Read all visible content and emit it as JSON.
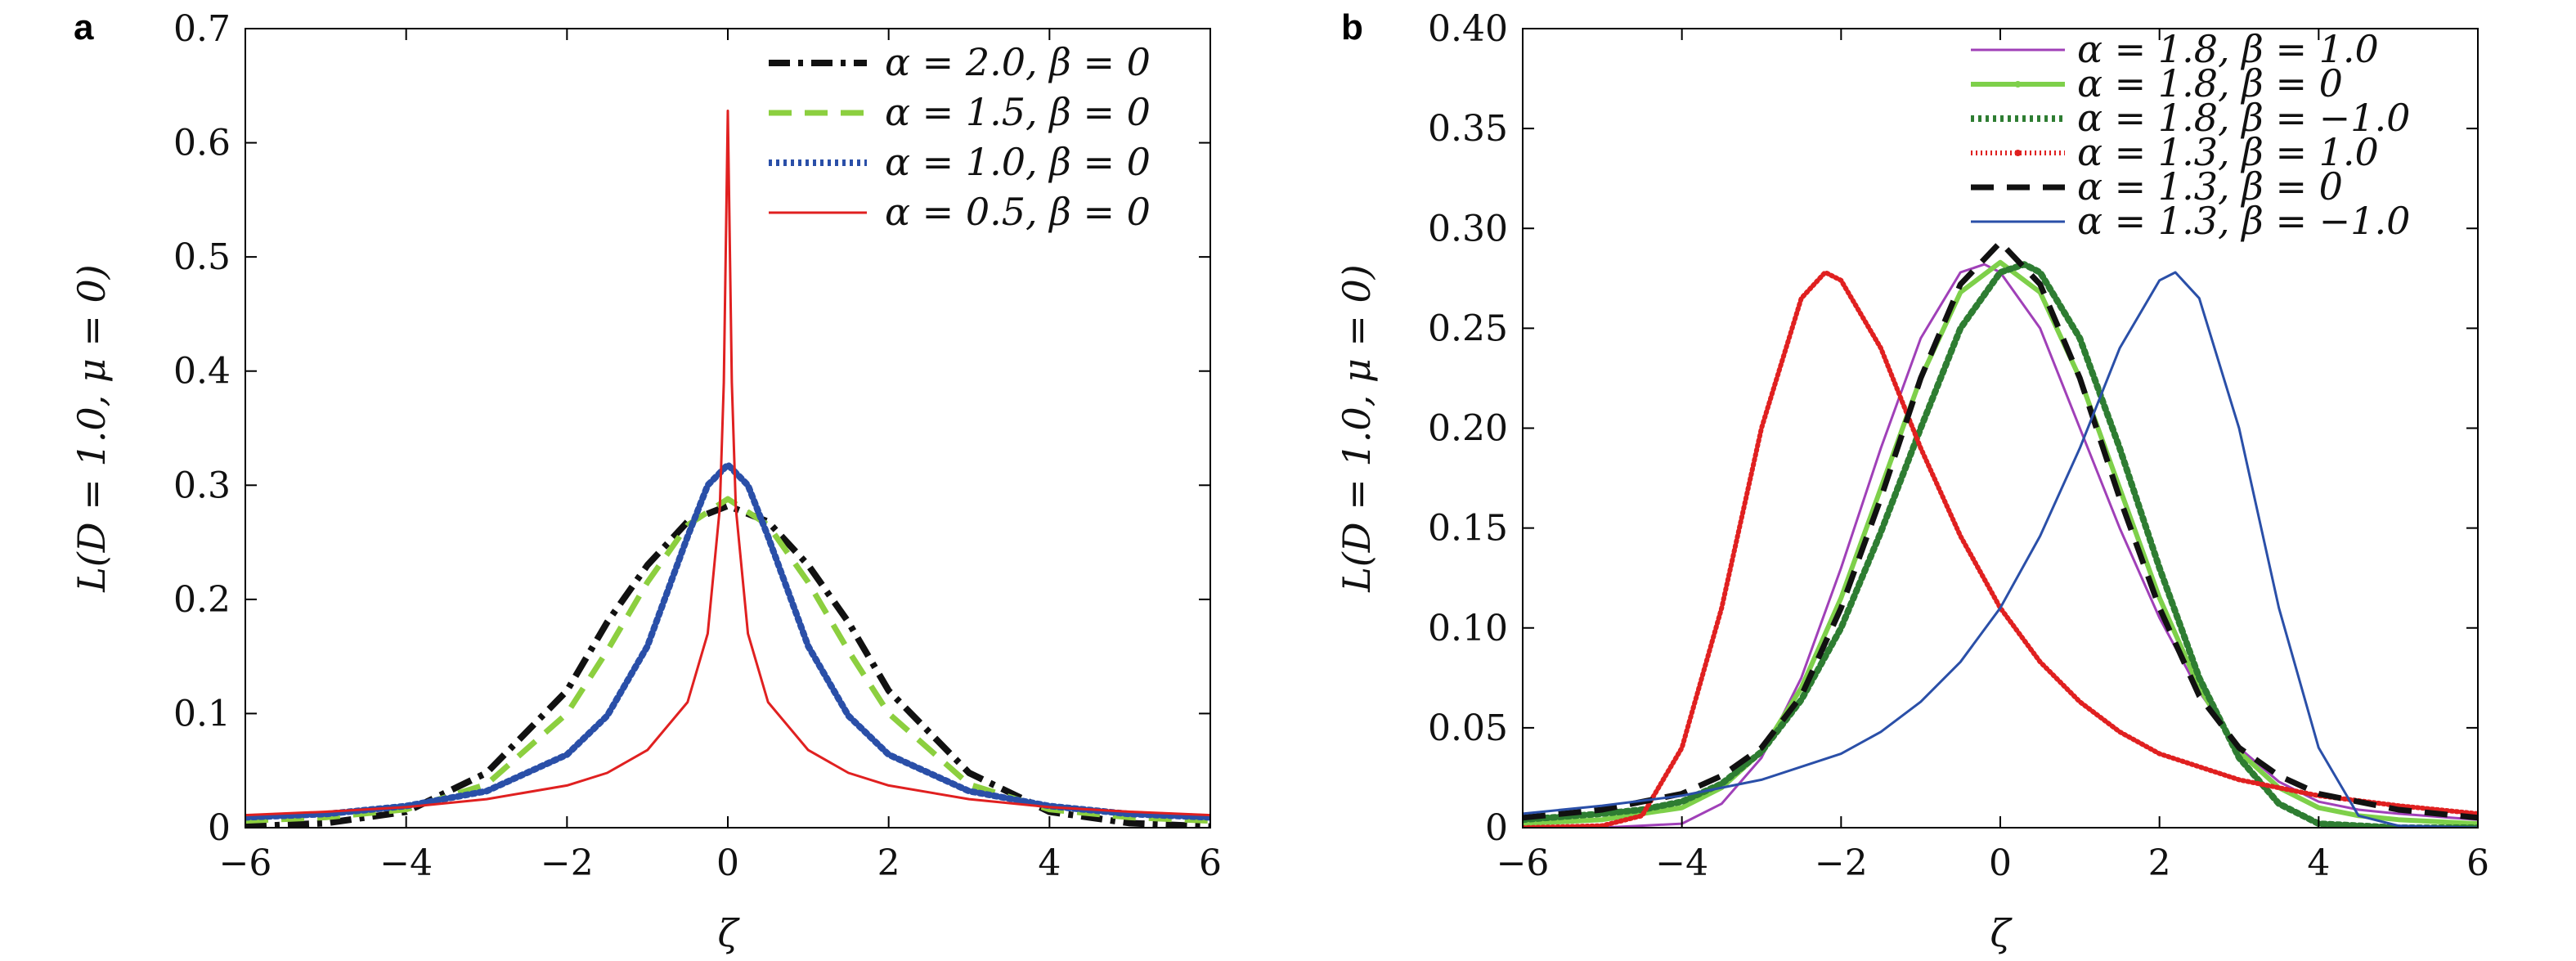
{
  "chart_data": [
    {
      "panel_label": "a",
      "type": "line",
      "xlabel": "ζ",
      "ylabel": "L(D = 1.0, μ = 0)",
      "xlim": [
        -6,
        6
      ],
      "ylim": [
        0,
        0.7
      ],
      "x_ticks": [
        -6,
        -4,
        -2,
        0,
        2,
        4,
        6
      ],
      "x_tick_labels": [
        "−6",
        "−4",
        "−2",
        "0",
        "2",
        "4",
        "6"
      ],
      "y_ticks": [
        0,
        0.1,
        0.2,
        0.3,
        0.4,
        0.5,
        0.6,
        0.7
      ],
      "y_tick_labels": [
        "0",
        "0.1",
        "0.2",
        "0.3",
        "0.4",
        "0.5",
        "0.6",
        "0.7"
      ],
      "legend_position": "top-right",
      "grid": false,
      "series": [
        {
          "name": "α = 2.0, β = 0",
          "color": "#111111",
          "style": "dashdot",
          "x": [
            -6,
            -5,
            -4,
            -3,
            -2,
            -1.5,
            -1,
            -0.5,
            0,
            0.5,
            1,
            1.5,
            2,
            3,
            4,
            5,
            6
          ],
          "y": [
            0.001,
            0.004,
            0.014,
            0.048,
            0.12,
            0.18,
            0.23,
            0.268,
            0.282,
            0.268,
            0.23,
            0.18,
            0.12,
            0.048,
            0.014,
            0.004,
            0.001
          ]
        },
        {
          "name": "α = 1.5, β = 0",
          "color": "#8ccf3f",
          "style": "dashed",
          "x": [
            -6,
            -5,
            -4,
            -3,
            -2,
            -1.5,
            -1,
            -0.5,
            0,
            0.5,
            1,
            1.5,
            2,
            3,
            4,
            5,
            6
          ],
          "y": [
            0.006,
            0.009,
            0.016,
            0.038,
            0.1,
            0.155,
            0.215,
            0.265,
            0.288,
            0.265,
            0.215,
            0.155,
            0.1,
            0.038,
            0.016,
            0.009,
            0.006
          ]
        },
        {
          "name": "α = 1.0, β = 0",
          "color": "#2a4fa8",
          "style": "dotted",
          "x": [
            -6,
            -5,
            -4,
            -3,
            -2,
            -1.5,
            -1,
            -0.5,
            -0.25,
            0,
            0.25,
            0.5,
            1,
            1.5,
            2,
            3,
            4,
            5,
            6
          ],
          "y": [
            0.009,
            0.012,
            0.019,
            0.032,
            0.064,
            0.098,
            0.159,
            0.255,
            0.3,
            0.318,
            0.3,
            0.255,
            0.159,
            0.098,
            0.064,
            0.032,
            0.019,
            0.012,
            0.009
          ]
        },
        {
          "name": "α = 0.5, β = 0",
          "color": "#e02020",
          "style": "solid",
          "x": [
            -6,
            -5,
            -4,
            -3,
            -2,
            -1.5,
            -1,
            -0.5,
            -0.25,
            -0.1,
            -0.05,
            0,
            0.05,
            0.1,
            0.25,
            0.5,
            1,
            1.5,
            2,
            3,
            4,
            5,
            6
          ],
          "y": [
            0.011,
            0.014,
            0.018,
            0.025,
            0.037,
            0.048,
            0.068,
            0.11,
            0.17,
            0.28,
            0.39,
            0.628,
            0.39,
            0.28,
            0.17,
            0.11,
            0.068,
            0.048,
            0.037,
            0.025,
            0.018,
            0.014,
            0.011
          ]
        }
      ]
    },
    {
      "panel_label": "b",
      "type": "line",
      "xlabel": "ζ",
      "ylabel": "L(D = 1.0, μ = 0)",
      "xlim": [
        -6,
        6
      ],
      "ylim": [
        0,
        0.4
      ],
      "x_ticks": [
        -6,
        -4,
        -2,
        0,
        2,
        4,
        6
      ],
      "x_tick_labels": [
        "−6",
        "−4",
        "−2",
        "0",
        "2",
        "4",
        "6"
      ],
      "y_ticks": [
        0,
        0.05,
        0.1,
        0.15,
        0.2,
        0.25,
        0.3,
        0.35,
        0.4
      ],
      "y_tick_labels": [
        "0",
        "0.05",
        "0.10",
        "0.15",
        "0.20",
        "0.25",
        "0.30",
        "0.35",
        "0.40"
      ],
      "legend_position": "top-right",
      "grid": false,
      "series": [
        {
          "name": "α = 1.8, β = 1.0",
          "color": "#a040b8",
          "style": "solid",
          "x": [
            -6,
            -5,
            -4,
            -3.5,
            -3,
            -2.5,
            -2,
            -1.5,
            -1,
            -0.5,
            -0.2,
            0,
            0.5,
            1,
            1.5,
            2,
            2.5,
            3,
            3.5,
            4,
            4.5,
            5,
            6
          ],
          "y": [
            0.0,
            0.0,
            0.002,
            0.012,
            0.035,
            0.075,
            0.13,
            0.19,
            0.245,
            0.278,
            0.282,
            0.278,
            0.25,
            0.2,
            0.15,
            0.105,
            0.068,
            0.04,
            0.023,
            0.013,
            0.009,
            0.007,
            0.004
          ]
        },
        {
          "name": "α = 1.8, β = 0",
          "color": "#7ed04a",
          "style": "solid-marker",
          "x": [
            -6,
            -5,
            -4,
            -3.5,
            -3,
            -2.5,
            -2,
            -1.5,
            -1,
            -0.5,
            0,
            0.5,
            1,
            1.5,
            2,
            2.5,
            3,
            3.5,
            4,
            4.5,
            5,
            6
          ],
          "y": [
            0.002,
            0.004,
            0.01,
            0.02,
            0.038,
            0.07,
            0.115,
            0.17,
            0.225,
            0.268,
            0.283,
            0.268,
            0.225,
            0.17,
            0.115,
            0.07,
            0.038,
            0.02,
            0.01,
            0.006,
            0.004,
            0.002
          ]
        },
        {
          "name": "α = 1.8, β = −1.0",
          "color": "#2e7d32",
          "style": "dotted",
          "x": [
            -6,
            -5,
            -4.5,
            -4,
            -3.5,
            -3,
            -2.5,
            -2,
            -1.5,
            -1,
            -0.5,
            0,
            0.3,
            0.5,
            1,
            1.5,
            2,
            2.5,
            3,
            3.5,
            4,
            5,
            6
          ],
          "y": [
            0.004,
            0.007,
            0.009,
            0.013,
            0.022,
            0.038,
            0.064,
            0.1,
            0.148,
            0.2,
            0.25,
            0.278,
            0.282,
            0.278,
            0.245,
            0.19,
            0.13,
            0.075,
            0.035,
            0.012,
            0.002,
            0.0,
            0.0
          ]
        },
        {
          "name": "α = 1.3, β = 1.0",
          "color": "#e02020",
          "style": "dotted-marker",
          "x": [
            -6,
            -5,
            -4.5,
            -4,
            -3.5,
            -3,
            -2.5,
            -2.2,
            -2,
            -1.5,
            -1,
            -0.5,
            0,
            0.5,
            1,
            1.5,
            2,
            3,
            4,
            5,
            6
          ],
          "y": [
            0.0,
            0.001,
            0.006,
            0.04,
            0.11,
            0.2,
            0.265,
            0.278,
            0.274,
            0.24,
            0.19,
            0.146,
            0.11,
            0.083,
            0.063,
            0.048,
            0.037,
            0.024,
            0.016,
            0.011,
            0.007
          ]
        },
        {
          "name": "α = 1.3, β = 0",
          "color": "#111111",
          "style": "dashed",
          "x": [
            -6,
            -5,
            -4,
            -3.5,
            -3,
            -2.5,
            -2,
            -1.5,
            -1,
            -0.5,
            0,
            0.5,
            1,
            1.5,
            2,
            2.5,
            3,
            3.5,
            4,
            5,
            6
          ],
          "y": [
            0.005,
            0.009,
            0.017,
            0.026,
            0.04,
            0.066,
            0.11,
            0.165,
            0.225,
            0.272,
            0.293,
            0.272,
            0.225,
            0.165,
            0.11,
            0.066,
            0.04,
            0.026,
            0.017,
            0.009,
            0.005
          ]
        },
        {
          "name": "α = 1.3, β = −1.0",
          "color": "#2a4fa8",
          "style": "solid",
          "x": [
            -6,
            -5,
            -4,
            -3,
            -2,
            -1.5,
            -1,
            -0.5,
            0,
            0.5,
            1,
            1.5,
            2,
            2.2,
            2.5,
            3,
            3.5,
            4,
            4.5,
            5,
            6
          ],
          "y": [
            0.007,
            0.011,
            0.016,
            0.024,
            0.037,
            0.048,
            0.063,
            0.083,
            0.11,
            0.146,
            0.19,
            0.24,
            0.274,
            0.278,
            0.265,
            0.2,
            0.11,
            0.04,
            0.006,
            0.001,
            0.0
          ]
        }
      ]
    }
  ]
}
